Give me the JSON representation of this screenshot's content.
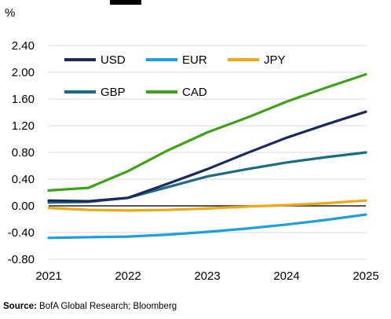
{
  "chart_data": {
    "type": "line",
    "y_unit_label": "%",
    "x_ticks": [
      "2021",
      "2022",
      "2023",
      "2024",
      "2025"
    ],
    "xlim": [
      2021,
      2025
    ],
    "ylim": [
      -0.8,
      2.4
    ],
    "y_ticks": [
      "2.40",
      "2.00",
      "1.60",
      "1.20",
      "0.80",
      "0.40",
      "0.00",
      "-0.40",
      "-0.80"
    ],
    "y_tick_values": [
      2.4,
      2.0,
      1.6,
      1.2,
      0.8,
      0.4,
      0.0,
      -0.4,
      -0.8
    ],
    "gridlines": "horizontal",
    "zero_line": true,
    "legend_position": "top-left",
    "series": [
      {
        "name": "USD",
        "color": "#1b2a5c",
        "x": [
          2021,
          2021.5,
          2022,
          2022.5,
          2023,
          2023.5,
          2024,
          2024.5,
          2025
        ],
        "y": [
          0.08,
          0.07,
          0.12,
          0.33,
          0.55,
          0.79,
          1.02,
          1.22,
          1.41
        ]
      },
      {
        "name": "EUR",
        "color": "#1b9fe0",
        "x": [
          2021,
          2021.5,
          2022,
          2022.5,
          2023,
          2023.5,
          2024,
          2024.5,
          2025
        ],
        "y": [
          -0.48,
          -0.47,
          -0.46,
          -0.43,
          -0.39,
          -0.34,
          -0.28,
          -0.21,
          -0.13
        ]
      },
      {
        "name": "JPY",
        "color": "#f0a818",
        "x": [
          2021,
          2021.5,
          2022,
          2022.5,
          2023,
          2023.5,
          2024,
          2024.5,
          2025
        ],
        "y": [
          -0.03,
          -0.06,
          -0.07,
          -0.06,
          -0.04,
          -0.01,
          0.01,
          0.04,
          0.08
        ]
      },
      {
        "name": "GBP",
        "color": "#1c6b86",
        "x": [
          2021,
          2021.5,
          2022,
          2022.5,
          2023,
          2023.5,
          2024,
          2024.5,
          2025
        ],
        "y": [
          0.05,
          0.06,
          0.12,
          0.28,
          0.44,
          0.55,
          0.65,
          0.73,
          0.8
        ]
      },
      {
        "name": "CAD",
        "color": "#3ea118",
        "x": [
          2021,
          2021.5,
          2022,
          2022.5,
          2023,
          2023.5,
          2024,
          2024.5,
          2025
        ],
        "y": [
          0.23,
          0.27,
          0.52,
          0.83,
          1.1,
          1.32,
          1.56,
          1.77,
          1.97
        ]
      }
    ],
    "extra_series_gray_zero": {
      "color": "#555555"
    }
  },
  "source": {
    "label": "Source:",
    "text": " BofA Global Research; Bloomberg"
  }
}
